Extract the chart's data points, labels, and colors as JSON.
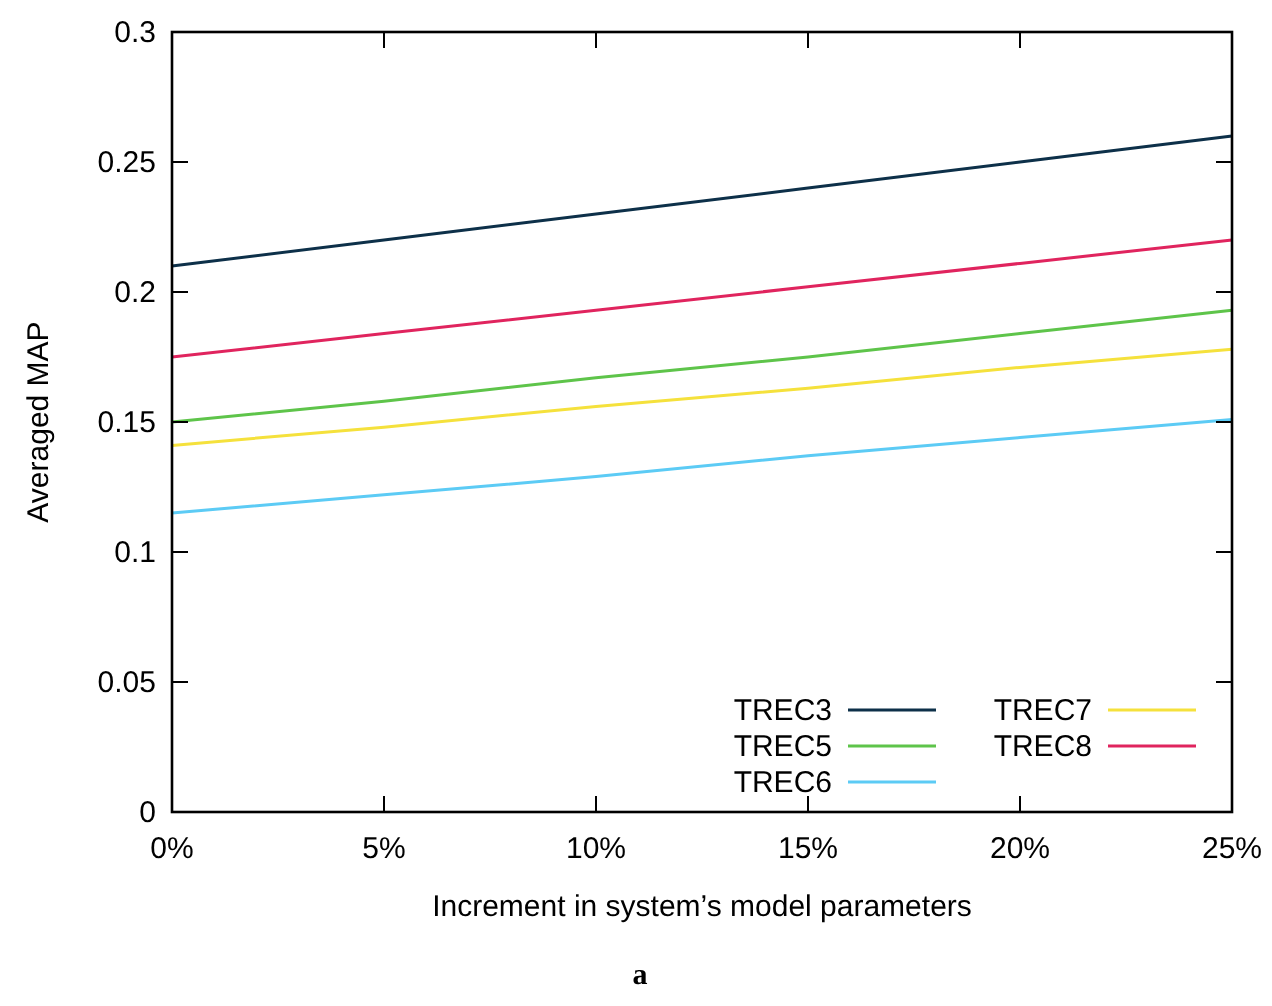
{
  "chart_data": {
    "type": "line",
    "x": [
      0,
      5,
      10,
      15,
      20,
      25
    ],
    "series": [
      {
        "name": "TREC3",
        "color": "#0d3049",
        "values": [
          0.21,
          0.22,
          0.23,
          0.24,
          0.25,
          0.26
        ]
      },
      {
        "name": "TREC5",
        "color": "#5ec44a",
        "values": [
          0.15,
          0.158,
          0.167,
          0.175,
          0.184,
          0.193
        ]
      },
      {
        "name": "TREC6",
        "color": "#5ccbf5",
        "values": [
          0.115,
          0.122,
          0.129,
          0.137,
          0.144,
          0.151
        ]
      },
      {
        "name": "TREC7",
        "color": "#f5e13c",
        "values": [
          0.141,
          0.148,
          0.156,
          0.163,
          0.171,
          0.178
        ]
      },
      {
        "name": "TREC8",
        "color": "#e0245e",
        "values": [
          0.175,
          0.184,
          0.193,
          0.202,
          0.211,
          0.22
        ]
      }
    ],
    "xlim": [
      0,
      25
    ],
    "xticks": [
      {
        "value": 0,
        "label": "0%"
      },
      {
        "value": 5,
        "label": "5%"
      },
      {
        "value": 10,
        "label": "10%"
      },
      {
        "value": 15,
        "label": "15%"
      },
      {
        "value": 20,
        "label": "20%"
      },
      {
        "value": 25,
        "label": "25%"
      }
    ],
    "ylim": [
      0,
      0.3
    ],
    "yticks": [
      0,
      0.05,
      0.1,
      0.15,
      0.2,
      0.25,
      0.3
    ],
    "xlabel": "Increment in system’s model parameters",
    "ylabel": "Averaged MAP",
    "annotations": [
      "a"
    ],
    "legend": "bottom right",
    "grid": false,
    "marker": "none",
    "line_style": "solid"
  }
}
